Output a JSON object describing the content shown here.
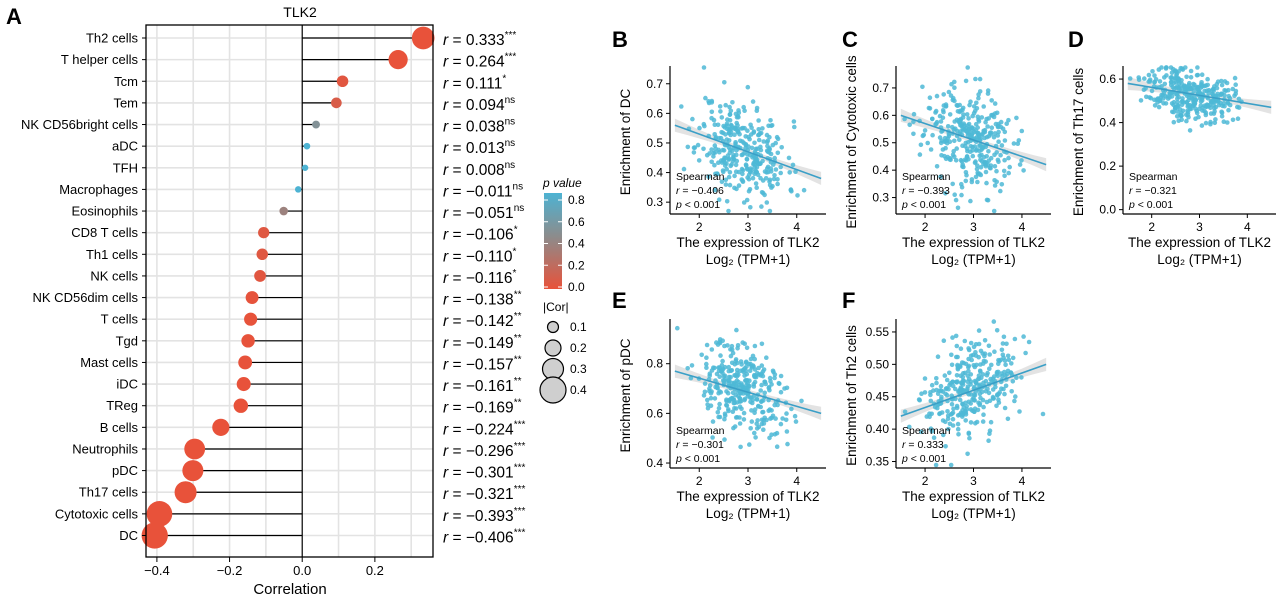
{
  "colors": {
    "high_p": "#4db3d3",
    "mid_p": "#8c8c8c",
    "low_p": "#e8523a",
    "grid": "#e3e3e3",
    "scatter": "#4db8d6",
    "line": "#3a9fc7",
    "band": "#cccccc"
  },
  "chart_data": [
    {
      "panel": "A",
      "type": "lollipop",
      "title": "TLK2",
      "xlabel": "Correlation",
      "xlim": [
        -0.43,
        0.36
      ],
      "xticks": [
        "-0.4",
        "-0.2",
        "0.0",
        "0.2"
      ],
      "xtick_values": [
        -0.4,
        -0.2,
        0.0,
        0.2
      ],
      "categories": [
        "Th2 cells",
        "T helper cells",
        "Tcm",
        "Tem",
        "NK CD56bright cells",
        "aDC",
        "TFH",
        "Macrophages",
        "Eosinophils",
        "CD8 T cells",
        "Th1 cells",
        "NK cells",
        "NK CD56dim cells",
        "T cells",
        "Tgd",
        "Mast cells",
        "iDC",
        "TReg",
        "B cells",
        "Neutrophils",
        "pDC",
        "Th17 cells",
        "Cytotoxic cells",
        "DC"
      ],
      "values": [
        0.333,
        0.264,
        0.111,
        0.094,
        0.038,
        0.013,
        0.008,
        -0.011,
        -0.051,
        -0.106,
        -0.11,
        -0.116,
        -0.138,
        -0.142,
        -0.149,
        -0.157,
        -0.161,
        -0.169,
        -0.224,
        -0.296,
        -0.301,
        -0.321,
        -0.393,
        -0.406
      ],
      "r_labels": [
        "r = 0.333",
        "r = 0.264",
        "r = 0.111",
        "r = 0.094",
        "r = 0.038",
        "r = 0.013",
        "r = 0.008",
        "r = −0.011",
        "r = −0.051",
        "r = −0.106",
        "r = −0.110",
        "r = −0.116",
        "r = −0.138",
        "r = −0.142",
        "r = −0.149",
        "r = −0.157",
        "r = −0.161",
        "r = −0.169",
        "r = −0.224",
        "r = −0.296",
        "r = −0.301",
        "r = −0.321",
        "r = −0.393",
        "r = −0.406"
      ],
      "significance": [
        "***",
        "***",
        "*",
        "ns",
        "ns",
        "ns",
        "ns",
        "ns",
        "ns",
        "*",
        "*",
        "*",
        "**",
        "**",
        "**",
        "**",
        "**",
        "**",
        "***",
        "***",
        "***",
        "***",
        "***",
        "***"
      ],
      "p_values": [
        0.0,
        0.0,
        0.03,
        0.07,
        0.46,
        0.8,
        0.88,
        0.83,
        0.33,
        0.04,
        0.04,
        0.03,
        0.008,
        0.006,
        0.004,
        0.003,
        0.002,
        0.001,
        0.0,
        0.0,
        0.0,
        0.0,
        0.0,
        0.0
      ],
      "legend_p": {
        "title": "p value",
        "ticks": [
          "0.8",
          "0.6",
          "0.4",
          "0.2",
          "0.0"
        ],
        "tick_values": [
          0.8,
          0.6,
          0.4,
          0.2,
          0.0
        ]
      },
      "legend_size": {
        "title": "|Cor|",
        "labels": [
          "0.1",
          "0.2",
          "0.3",
          "0.4"
        ],
        "values": [
          0.1,
          0.2,
          0.3,
          0.4
        ]
      }
    },
    {
      "panel": "B",
      "type": "scatter",
      "ylabel": "Enrichment of DC",
      "xlabel_line1": "The expression of TLK2",
      "xlabel_line2": "Log₂ (TPM+1)",
      "xlim": [
        1.4,
        4.6
      ],
      "ylim": [
        0.26,
        0.76
      ],
      "xticks": [
        "2",
        "3",
        "4"
      ],
      "xtick_values": [
        2,
        3,
        4
      ],
      "yticks": [
        "0.3",
        "0.4",
        "0.5",
        "0.6",
        "0.7"
      ],
      "ytick_values": [
        0.3,
        0.4,
        0.5,
        0.6,
        0.7
      ],
      "fit": {
        "x": [
          1.5,
          4.5
        ],
        "y": [
          0.56,
          0.38
        ]
      },
      "center": [
        2.9,
        0.48
      ],
      "sd": [
        0.45,
        0.08
      ],
      "n": 330,
      "seed": 11,
      "stats": {
        "method": "Spearman",
        "r": "r = −0.406",
        "p": "p < 0.001"
      }
    },
    {
      "panel": "C",
      "type": "scatter",
      "ylabel": "Enrichment of Cytotoxic cells",
      "xlabel_line1": "The expression of TLK2",
      "xlabel_line2": "Log₂ (TPM+1)",
      "xlim": [
        1.4,
        4.6
      ],
      "ylim": [
        0.24,
        0.78
      ],
      "xticks": [
        "2",
        "3",
        "4"
      ],
      "xtick_values": [
        2,
        3,
        4
      ],
      "yticks": [
        "0.3",
        "0.4",
        "0.5",
        "0.6",
        "0.7"
      ],
      "ytick_values": [
        0.3,
        0.4,
        0.5,
        0.6,
        0.7
      ],
      "fit": {
        "x": [
          1.5,
          4.5
        ],
        "y": [
          0.6,
          0.42
        ]
      },
      "center": [
        2.9,
        0.52
      ],
      "sd": [
        0.45,
        0.09
      ],
      "n": 330,
      "seed": 23,
      "stats": {
        "method": "Spearman",
        "r": "r = −0.393",
        "p": "p < 0.001"
      }
    },
    {
      "panel": "D",
      "type": "scatter",
      "ylabel": "Enrichment of Th17 cells",
      "xlabel_line1": "The expression of TLK2",
      "xlabel_line2": "Log₂ (TPM+1)",
      "xlim": [
        1.4,
        4.6
      ],
      "ylim": [
        -0.02,
        0.66
      ],
      "xticks": [
        "2",
        "3",
        "4"
      ],
      "xtick_values": [
        2,
        3,
        4
      ],
      "yticks": [
        "0.0",
        "0.2",
        "0.4",
        "0.6"
      ],
      "ytick_values": [
        0.0,
        0.2,
        0.4,
        0.6
      ],
      "fit": {
        "x": [
          1.5,
          4.5
        ],
        "y": [
          0.58,
          0.47
        ]
      },
      "center": [
        2.8,
        0.53
      ],
      "sd": [
        0.45,
        0.06
      ],
      "n": 330,
      "seed": 37,
      "stats": {
        "method": "Spearman",
        "r": "r = −0.321",
        "p": "p < 0.001"
      }
    },
    {
      "panel": "E",
      "type": "scatter",
      "ylabel": "Enrichment of pDC",
      "xlabel_line1": "The expression of TLK2",
      "xlabel_line2": "Log₂ (TPM+1)",
      "xlim": [
        1.4,
        4.6
      ],
      "ylim": [
        0.38,
        0.98
      ],
      "xticks": [
        "2",
        "3",
        "4"
      ],
      "xtick_values": [
        2,
        3,
        4
      ],
      "yticks": [
        "0.4",
        "0.6",
        "0.8"
      ],
      "ytick_values": [
        0.4,
        0.6,
        0.8
      ],
      "fit": {
        "x": [
          1.5,
          4.5
        ],
        "y": [
          0.77,
          0.6
        ]
      },
      "center": [
        2.9,
        0.69
      ],
      "sd": [
        0.45,
        0.09
      ],
      "n": 330,
      "seed": 51,
      "stats": {
        "method": "Spearman",
        "r": "r = −0.301",
        "p": "p < 0.001"
      }
    },
    {
      "panel": "F",
      "type": "scatter",
      "ylabel": "Enrichment of Th2 cells",
      "xlabel_line1": "The expression of TLK2",
      "xlabel_line2": "Log₂ (TPM+1)",
      "xlim": [
        1.4,
        4.6
      ],
      "ylim": [
        0.34,
        0.57
      ],
      "xticks": [
        "2",
        "3",
        "4"
      ],
      "xtick_values": [
        2,
        3,
        4
      ],
      "yticks": [
        "0.35",
        "0.40",
        "0.45",
        "0.50",
        "0.55"
      ],
      "ytick_values": [
        0.35,
        0.4,
        0.45,
        0.5,
        0.55
      ],
      "fit": {
        "x": [
          1.5,
          4.5
        ],
        "y": [
          0.42,
          0.5
        ]
      },
      "center": [
        2.9,
        0.455
      ],
      "sd": [
        0.45,
        0.035
      ],
      "n": 330,
      "seed": 67,
      "stats": {
        "method": "Spearman",
        "r": "r = 0.333",
        "p": "p < 0.001"
      }
    }
  ]
}
